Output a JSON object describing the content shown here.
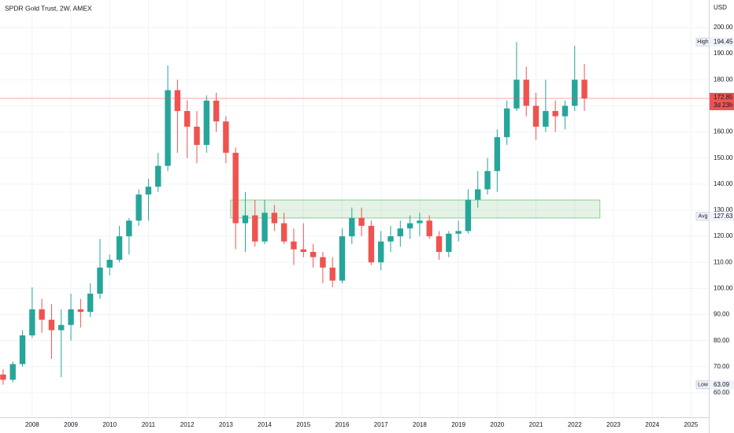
{
  "chart_data": {
    "type": "candlestick",
    "title": "SPDR Gold Trust, 2W, AMEX",
    "currency": "USD",
    "x": [
      2007.25,
      2007.5,
      2007.75,
      2008.0,
      2008.25,
      2008.5,
      2008.75,
      2009.0,
      2009.25,
      2009.5,
      2009.75,
      2010.0,
      2010.25,
      2010.5,
      2010.75,
      2011.0,
      2011.25,
      2011.5,
      2011.75,
      2012.0,
      2012.25,
      2012.5,
      2012.75,
      2013.0,
      2013.25,
      2013.5,
      2013.75,
      2014.0,
      2014.25,
      2014.5,
      2014.75,
      2015.0,
      2015.25,
      2015.5,
      2015.75,
      2016.0,
      2016.25,
      2016.5,
      2016.75,
      2017.0,
      2017.25,
      2017.5,
      2017.75,
      2018.0,
      2018.25,
      2018.5,
      2018.75,
      2019.0,
      2019.25,
      2019.5,
      2019.75,
      2020.0,
      2020.25,
      2020.5,
      2020.75,
      2021.0,
      2021.25,
      2021.5,
      2021.75,
      2022.0,
      2022.25
    ],
    "open": [
      67,
      65,
      71,
      82,
      92,
      88,
      84,
      86,
      92,
      91,
      98,
      108,
      111,
      120,
      126,
      136,
      139,
      147,
      176,
      168,
      162,
      155,
      172,
      164,
      152,
      125,
      128,
      118,
      129,
      125,
      118,
      115,
      114,
      112,
      108,
      103,
      120,
      127,
      124,
      110,
      118,
      120,
      123,
      125,
      126,
      120,
      114,
      121,
      122,
      134,
      138,
      145,
      158,
      169,
      180,
      170,
      162,
      168,
      166,
      170,
      180
    ],
    "high": [
      69,
      72,
      84,
      100.4,
      96,
      94,
      92,
      98,
      96,
      102,
      119,
      113,
      124,
      127,
      138,
      142,
      152,
      185.5,
      180,
      172,
      168,
      174,
      175,
      166,
      154,
      137,
      134,
      134,
      132,
      129,
      123,
      125,
      117,
      114,
      112,
      123,
      131,
      131,
      126,
      122,
      124,
      126,
      128,
      129,
      128,
      122,
      122,
      126,
      138,
      145,
      150,
      161,
      172,
      194.45,
      185,
      175,
      180,
      172,
      172,
      193,
      186
    ],
    "low": [
      63.09,
      64,
      70,
      81,
      83,
      73,
      66,
      80,
      85,
      89,
      96,
      105,
      110,
      113,
      124,
      126,
      137,
      145,
      152,
      150,
      148,
      152,
      160,
      148,
      115,
      114,
      116,
      117,
      122,
      117,
      109,
      112,
      108,
      102,
      100.5,
      102,
      117,
      120,
      109,
      107,
      114,
      116,
      119,
      120,
      119,
      111,
      112,
      118,
      121,
      131,
      136,
      137,
      155,
      168,
      166,
      157,
      160,
      160,
      161,
      168,
      168
    ],
    "close": [
      65,
      71,
      82,
      92,
      88,
      84,
      86,
      92,
      91,
      98,
      108,
      111,
      120,
      126,
      136,
      139,
      147,
      176,
      168,
      162,
      155,
      172,
      164,
      152,
      125,
      128,
      118,
      129,
      125,
      118,
      115,
      114,
      112,
      108,
      103,
      120,
      127,
      124,
      110,
      118,
      120,
      123,
      125,
      126,
      120,
      114,
      121,
      122,
      134,
      138,
      145,
      158,
      169,
      180,
      170,
      162,
      168,
      166,
      170,
      180,
      172.85
    ],
    "up_color": "#26a69a",
    "down_color": "#ef5350",
    "xlim": [
      2007.17,
      2025.46
    ],
    "ylim": [
      50.63,
      210.56
    ],
    "xticks": [
      2008,
      2009,
      2010,
      2011,
      2012,
      2013,
      2014,
      2015,
      2016,
      2017,
      2018,
      2019,
      2020,
      2021,
      2022,
      2023,
      2024,
      2025
    ],
    "yticks": [
      {
        "value": 60,
        "label": "60.00"
      },
      {
        "value": 70,
        "label": "70.00"
      },
      {
        "value": 80,
        "label": "80.00"
      },
      {
        "value": 90,
        "label": "90.00"
      },
      {
        "value": 100,
        "label": "100.00"
      },
      {
        "value": 110,
        "label": "110.00"
      },
      {
        "value": 120,
        "label": "120.00"
      },
      {
        "value": 130,
        "label": "130.00"
      },
      {
        "value": 140,
        "label": "140.00"
      },
      {
        "value": 150,
        "label": "150.00"
      },
      {
        "value": 160,
        "label": "160.00"
      },
      {
        "value": 170,
        "label": "170.00"
      },
      {
        "value": 180,
        "label": "180.00"
      },
      {
        "value": 190,
        "label": "190.00"
      },
      {
        "value": 200,
        "label": "200.00"
      }
    ],
    "grid": true,
    "zone": {
      "x": [
        2013.12,
        2022.65
      ],
      "y": [
        127,
        133.9
      ],
      "color": "#4caf50"
    },
    "markers": [
      {
        "label": "High",
        "value": 194.45
      },
      {
        "label": "Avg",
        "value": 127.63
      },
      {
        "label": "Low",
        "value": 63.09
      }
    ],
    "last": {
      "value": 172.85,
      "countdown": "3d 23h",
      "color": "#ef5350"
    }
  }
}
